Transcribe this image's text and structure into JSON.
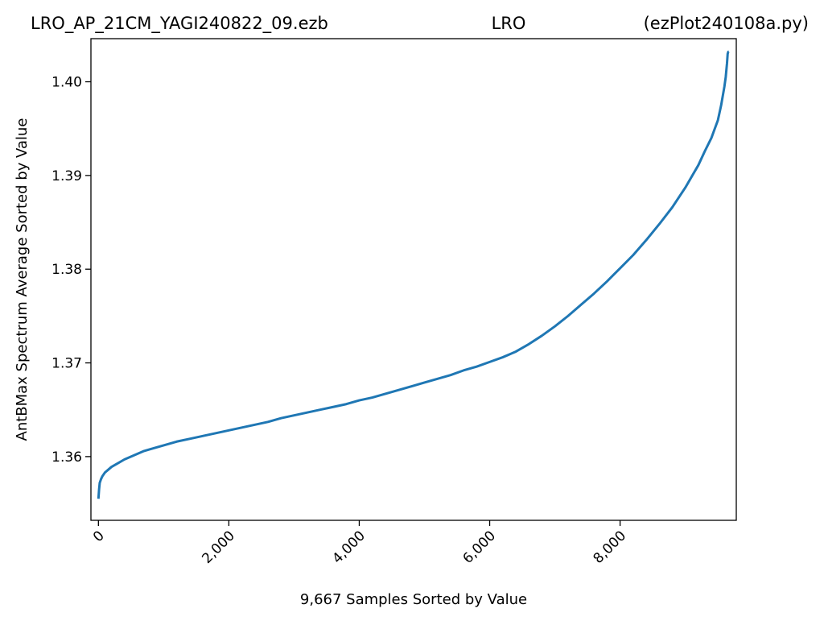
{
  "header": {
    "left": "LRO_AP_21CM_YAGI240822_09.ezb",
    "center": "LRO",
    "right": "(ezPlot240108a.py)"
  },
  "colors": {
    "line": "#1f77b4",
    "axes": "#000000",
    "background": "#ffffff"
  },
  "chart_data": {
    "type": "line",
    "title": "",
    "xlabel": "9,667 Samples Sorted by Value",
    "ylabel": "AntBMax Spectrum Average Sorted by Value",
    "xlim": [
      -115,
      9782
    ],
    "ylim": [
      1.3532,
      1.4046
    ],
    "xticks": [
      {
        "value": 0,
        "label": "0"
      },
      {
        "value": 2000,
        "label": "2,000"
      },
      {
        "value": 4000,
        "label": "4,000"
      },
      {
        "value": 6000,
        "label": "6,000"
      },
      {
        "value": 8000,
        "label": "8,000"
      }
    ],
    "yticks": [
      {
        "value": 1.36,
        "label": "1.36"
      },
      {
        "value": 1.37,
        "label": "1.37"
      },
      {
        "value": 1.38,
        "label": "1.38"
      },
      {
        "value": 1.39,
        "label": "1.39"
      },
      {
        "value": 1.4,
        "label": "1.40"
      }
    ],
    "grid": false,
    "legend": "none",
    "series": [
      {
        "x": [
          0,
          10,
          20,
          40,
          60,
          100,
          150,
          200,
          300,
          400,
          500,
          600,
          700,
          800,
          1000,
          1200,
          1400,
          1600,
          1800,
          2000,
          2200,
          2400,
          2600,
          2800,
          3000,
          3200,
          3400,
          3600,
          3800,
          4000,
          4200,
          4400,
          4600,
          4800,
          5000,
          5200,
          5400,
          5600,
          5800,
          6000,
          6200,
          6400,
          6600,
          6800,
          7000,
          7200,
          7400,
          7600,
          7800,
          8000,
          8200,
          8400,
          8600,
          8800,
          9000,
          9100,
          9200,
          9300,
          9400,
          9500,
          9550,
          9600,
          9620,
          9640,
          9650,
          9660,
          9666
        ],
        "y": [
          1.3555,
          1.3565,
          1.3572,
          1.3576,
          1.3579,
          1.3583,
          1.3586,
          1.3589,
          1.3593,
          1.3597,
          1.36,
          1.3603,
          1.3606,
          1.3608,
          1.3612,
          1.3616,
          1.3619,
          1.3622,
          1.3625,
          1.3628,
          1.3631,
          1.3634,
          1.3637,
          1.3641,
          1.3644,
          1.3647,
          1.365,
          1.3653,
          1.3656,
          1.366,
          1.3663,
          1.3667,
          1.3671,
          1.3675,
          1.3679,
          1.3683,
          1.3687,
          1.3692,
          1.3696,
          1.3701,
          1.3706,
          1.3712,
          1.372,
          1.3729,
          1.3739,
          1.375,
          1.3762,
          1.3774,
          1.3787,
          1.3801,
          1.3815,
          1.3831,
          1.3848,
          1.3866,
          1.3887,
          1.3899,
          1.3911,
          1.3926,
          1.394,
          1.3959,
          1.3975,
          1.3995,
          1.4005,
          1.402,
          1.403,
          1.4032,
          1.4032
        ]
      }
    ]
  }
}
